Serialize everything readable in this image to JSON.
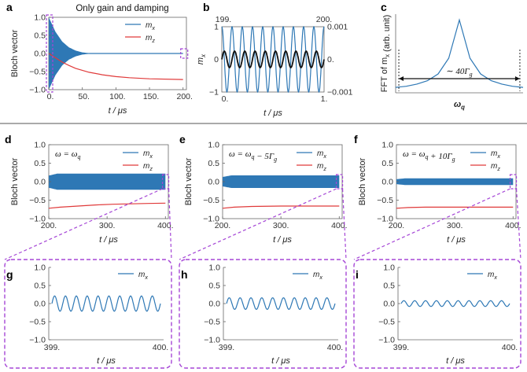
{
  "colors": {
    "mx": "#2e78b5",
    "mz": "#e03a3a",
    "black": "#111111",
    "zoom": "#a546d6",
    "divider": "#555555"
  },
  "chart_data": [
    {
      "id": "a",
      "panel_label": "a",
      "type": "line",
      "title": "Only gain and damping",
      "xlabel": "t / μs",
      "ylabel": "Bloch vector",
      "xlim": [
        0,
        205
      ],
      "ylim": [
        -1.0,
        1.0
      ],
      "xticks": [
        "0.",
        "50.",
        "100.",
        "150.",
        "200."
      ],
      "yticks": [
        "1.0",
        "0.5",
        "0.0",
        "−0.5",
        "−1.0"
      ],
      "series": [
        {
          "name": "m_x",
          "label": "m",
          "sub": "x",
          "desc": "oscillation with envelope decaying from 1.0 to ~0 by t≈60 μs",
          "envelope_t": [
            0,
            5,
            10,
            20,
            30,
            40,
            50,
            60,
            200
          ],
          "envelope": [
            1.0,
            0.8,
            0.6,
            0.33,
            0.17,
            0.08,
            0.03,
            0.01,
            0.0
          ]
        },
        {
          "name": "m_z",
          "label": "m",
          "sub": "z",
          "t": [
            0,
            10,
            20,
            30,
            40,
            60,
            80,
            100,
            120,
            150,
            200
          ],
          "values": [
            0.0,
            -0.12,
            -0.24,
            -0.33,
            -0.41,
            -0.52,
            -0.59,
            -0.64,
            -0.67,
            -0.7,
            -0.72
          ]
        }
      ]
    },
    {
      "id": "b",
      "panel_label": "b",
      "type": "line",
      "xlabel": "t / μs",
      "ylabel": "m",
      "ylabel_sub": "x",
      "top_ticks": [
        "199.",
        "200."
      ],
      "bottom_ticks": [
        "0.",
        "1."
      ],
      "left_ylim": [
        -1,
        1
      ],
      "right_ylim": [
        -0.001,
        0.001
      ],
      "left_yticks": [
        "1",
        "0",
        "−1"
      ],
      "right_yticks": [
        "0.001",
        "0.",
        "−0.001"
      ],
      "series": [
        {
          "name": "m_x (t = 0–1 μs, left axis)",
          "amplitude": 1.0,
          "cycles": 10,
          "color": "blue"
        },
        {
          "name": "m_x (t = 199–200 μs, right axis)",
          "amplitude": 0.00025,
          "cycles": 10,
          "color": "black"
        }
      ]
    },
    {
      "id": "c",
      "panel_label": "c",
      "type": "line",
      "xlabel": "ω",
      "xlabel_sub": "q",
      "ylabel": "FFT of m",
      "ylabel_sub": "x",
      "ylabel_tail": " (arb. unit)",
      "annotation": "∼ 40Γ",
      "annotation_sub": "g",
      "x": [
        -6,
        -5,
        -4,
        -3,
        -2,
        -1,
        0,
        1,
        2,
        3,
        4,
        5,
        6
      ],
      "values": [
        0.02,
        0.03,
        0.05,
        0.08,
        0.14,
        0.28,
        0.62,
        0.28,
        0.14,
        0.08,
        0.05,
        0.03,
        0.02
      ]
    },
    {
      "id": "d",
      "panel_label": "d",
      "type": "line",
      "xlabel": "t / μs",
      "ylabel": "Bloch vector",
      "annotation": "ω = ω",
      "annotation_sub": "q",
      "annotation_tail": "",
      "xlim": [
        200,
        405
      ],
      "ylim": [
        -1.0,
        1.0
      ],
      "xticks": [
        "200.",
        "300.",
        "400."
      ],
      "yticks": [
        "1.0",
        "0.5",
        "0.0",
        "−0.5",
        "−1.0"
      ],
      "series": [
        {
          "name": "m_x",
          "label": "m",
          "sub": "x",
          "amplitude": 0.22
        },
        {
          "name": "m_z",
          "label": "m",
          "sub": "z",
          "t": [
            200,
            220,
            250,
            280,
            310,
            340,
            370,
            400
          ],
          "values": [
            -0.72,
            -0.69,
            -0.66,
            -0.63,
            -0.61,
            -0.6,
            -0.59,
            -0.58
          ]
        }
      ]
    },
    {
      "id": "e",
      "panel_label": "e",
      "type": "line",
      "xlabel": "t / μs",
      "ylabel": "Bloch vector",
      "annotation": "ω = ω",
      "annotation_sub": "q",
      "annotation_tail": " − 5Γ",
      "annotation_tail_sub": "g",
      "xlim": [
        200,
        405
      ],
      "ylim": [
        -1.0,
        1.0
      ],
      "xticks": [
        "200.",
        "300.",
        "400."
      ],
      "yticks": [
        "1.0",
        "0.5",
        "0.0",
        "−0.5",
        "−1.0"
      ],
      "series": [
        {
          "name": "m_x",
          "label": "m",
          "sub": "x",
          "amplitude": 0.17
        },
        {
          "name": "m_z",
          "label": "m",
          "sub": "z",
          "t": [
            200,
            220,
            250,
            300,
            350,
            400
          ],
          "values": [
            -0.72,
            -0.69,
            -0.67,
            -0.66,
            -0.66,
            -0.66
          ]
        }
      ]
    },
    {
      "id": "f",
      "panel_label": "f",
      "type": "line",
      "xlabel": "t / μs",
      "ylabel": "Bloch vector",
      "annotation": "ω = ω",
      "annotation_sub": "q",
      "annotation_tail": " + 10Γ",
      "annotation_tail_sub": "g",
      "xlim": [
        200,
        405
      ],
      "ylim": [
        -1.0,
        1.0
      ],
      "xticks": [
        "200.",
        "300.",
        "400."
      ],
      "yticks": [
        "1.0",
        "0.5",
        "0.0",
        "−0.5",
        "−1.0"
      ],
      "series": [
        {
          "name": "m_x",
          "label": "m",
          "sub": "x",
          "amplitude": 0.09
        },
        {
          "name": "m_z",
          "label": "m",
          "sub": "z",
          "t": [
            200,
            220,
            250,
            300,
            350,
            400
          ],
          "values": [
            -0.72,
            -0.7,
            -0.69,
            -0.69,
            -0.69,
            -0.69
          ]
        }
      ]
    },
    {
      "id": "g",
      "panel_label": "g",
      "type": "line",
      "xlabel": "t / μs",
      "xlim": [
        399,
        400
      ],
      "ylim": [
        -1.0,
        1.0
      ],
      "xticks": [
        "399.",
        "400."
      ],
      "yticks": [
        "1.0",
        "0.5",
        "0.0",
        "−0.5",
        "−1.0"
      ],
      "series": [
        {
          "name": "m_x",
          "label": "m",
          "sub": "x",
          "amplitude": 0.21,
          "cycles": 10
        }
      ]
    },
    {
      "id": "h",
      "panel_label": "h",
      "type": "line",
      "xlabel": "t / μs",
      "xlim": [
        399,
        400
      ],
      "ylim": [
        -1.0,
        1.0
      ],
      "xticks": [
        "399.",
        "400."
      ],
      "yticks": [
        "1.0",
        "0.5",
        "0.0",
        "−0.5",
        "−1.0"
      ],
      "series": [
        {
          "name": "m_x",
          "label": "m",
          "sub": "x",
          "amplitude": 0.16,
          "cycles": 10
        }
      ]
    },
    {
      "id": "i",
      "panel_label": "i",
      "type": "line",
      "xlabel": "t / μs",
      "xlim": [
        399,
        400
      ],
      "ylim": [
        -1.0,
        1.0
      ],
      "xticks": [
        "399.",
        "400."
      ],
      "yticks": [
        "1.0",
        "0.5",
        "0.0",
        "−0.5",
        "−1.0"
      ],
      "series": [
        {
          "name": "m_x",
          "label": "m",
          "sub": "x",
          "amplitude": 0.08,
          "cycles": 10
        }
      ]
    }
  ]
}
